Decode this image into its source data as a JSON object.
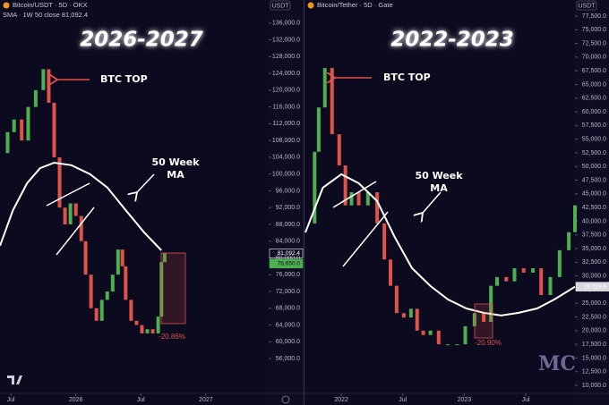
{
  "chart_data": [
    {
      "type": "candles",
      "header": "Bitcoin/USDT · 5D · OKX",
      "indicator": "SMA · 1W 50 close  81,092.4",
      "title": "2026-2027",
      "axis_label": "USDT",
      "top_label": "BTC TOP",
      "ma_label": [
        "50 Week",
        "MA"
      ],
      "drop_label": "-20.86%",
      "up_color": "#4caf50",
      "down_color": "#e0524a",
      "ma_color": "#ffffff",
      "x": [
        5.0,
        5.7,
        6.3,
        7.0,
        7.6,
        8.3,
        9.0,
        9.5,
        10.0,
        10.5,
        11.0,
        11.5,
        12.0,
        12.5,
        12.9,
        13.4,
        13.9,
        14.4,
        14.9,
        15.4,
        15.9,
        16.3,
        16.6,
        17.1,
        17.6,
        18.1,
        18.6,
        19.1,
        19.6,
        19.9,
        20.2
      ],
      "values": [
        105000,
        110000,
        113000,
        108000,
        116000,
        120000,
        125000,
        117000,
        104000,
        92000,
        88000,
        93000,
        90000,
        84000,
        76000,
        68000,
        65000,
        70000,
        72000,
        76000,
        82000,
        78000,
        70000,
        65000,
        64000,
        62000,
        63000,
        62000,
        66000,
        79000,
        81092.4
      ],
      "ma_x": [
        5.0,
        6.2,
        7.5,
        8.7,
        10.0,
        11.6,
        13.3,
        14.9,
        16.6,
        18.3,
        19.9
      ],
      "ma_values": [
        82900,
        91400,
        97800,
        101400,
        102700,
        102100,
        100000,
        96800,
        91400,
        86100,
        81800
      ],
      "price_tags": [
        {
          "value": 81092.4,
          "label": "81,092.4",
          "color": "#ffffff"
        },
        {
          "value": 78650,
          "label": "78,650.0",
          "color": "#4caf50"
        }
      ],
      "xlim": [
        5,
        29.8
      ],
      "xticks": [
        {
          "value": 6,
          "label": "Jul"
        },
        {
          "value": 12,
          "label": "2026"
        },
        {
          "value": 18,
          "label": "Jul"
        },
        {
          "value": 24,
          "label": "2027"
        }
      ],
      "ylim": [
        47700,
        141500
      ],
      "yticks": [
        {
          "value": 136000,
          "label": "136,000.0"
        },
        {
          "value": 132000,
          "label": "132,000.0"
        },
        {
          "value": 128000,
          "label": "128,000.0"
        },
        {
          "value": 124000,
          "label": "124,000.0"
        },
        {
          "value": 120000,
          "label": "120,000.0"
        },
        {
          "value": 116000,
          "label": "116,000.0"
        },
        {
          "value": 112000,
          "label": "112,000.0"
        },
        {
          "value": 108000,
          "label": "108,000.0"
        },
        {
          "value": 104000,
          "label": "104,000.0"
        },
        {
          "value": 100000,
          "label": "100,000.0"
        },
        {
          "value": 96000,
          "label": "96,000.0"
        },
        {
          "value": 92000,
          "label": "92,000.0"
        },
        {
          "value": 88000,
          "label": "88,000.0"
        },
        {
          "value": 84000,
          "label": "84,000.0"
        },
        {
          "value": 80000,
          "label": "80,000.0"
        },
        {
          "value": 76000,
          "label": "76,000.0"
        },
        {
          "value": 72000,
          "label": "72,000.0"
        },
        {
          "value": 68000,
          "label": "68,000.0"
        },
        {
          "value": 64000,
          "label": "64,000.0"
        },
        {
          "value": 60000,
          "label": "60,000.0"
        },
        {
          "value": 56000,
          "label": "56,000.0"
        }
      ]
    },
    {
      "type": "candles",
      "header": "Bitcoin/Tether · 5D · Gate",
      "title": "2022-2023",
      "axis_label": "USDT",
      "top_label": "BTC TOP",
      "ma_label": [
        "50 Week",
        "MA"
      ],
      "drop_label": "-20.90%",
      "up_color": "#4caf50",
      "down_color": "#e0524a",
      "ma_color": "#ffffff",
      "watermark": "MC",
      "x": [
        8.5,
        9.4,
        9.8,
        10.4,
        11.1,
        11.8,
        12.4,
        13.0,
        13.7,
        14.6,
        15.5,
        16.2,
        16.8,
        17.4,
        18.1,
        18.8,
        19.4,
        20.0,
        20.7,
        21.5,
        22.4,
        23.3,
        24.1,
        25.0,
        25.9,
        26.6,
        27.2,
        28.1,
        28.9,
        29.8,
        30.7,
        31.5,
        32.4,
        33.3,
        34.2,
        34.8
      ],
      "values": [
        39600,
        52700,
        60800,
        68000,
        55900,
        50200,
        42900,
        45300,
        42900,
        45300,
        39600,
        33000,
        28200,
        23200,
        22400,
        24000,
        20000,
        19200,
        20000,
        17500,
        17500,
        17500,
        20800,
        23200,
        21600,
        28200,
        29800,
        29000,
        31400,
        30600,
        31400,
        26500,
        29800,
        34700,
        38000,
        42900
      ],
      "ma_x": [
        8.5,
        10.2,
        12.0,
        13.7,
        15.5,
        17.2,
        18.9,
        20.7,
        22.4,
        24.2,
        25.9,
        27.6,
        29.3,
        31.1,
        32.8,
        34.8
      ],
      "ma_values": [
        37950,
        46130,
        48580,
        46950,
        43680,
        37140,
        31420,
        28150,
        25700,
        24060,
        23250,
        22760,
        23250,
        24060,
        25700,
        28029.6
      ],
      "price_tags": [
        {
          "value": 28029.6,
          "label": "28,029.6",
          "color": "#d8d8e0"
        }
      ],
      "xlim": [
        8.5,
        34.8
      ],
      "xticks": [
        {
          "value": 12,
          "label": "2022"
        },
        {
          "value": 18,
          "label": "Jul"
        },
        {
          "value": 24,
          "label": "2023"
        },
        {
          "value": 30,
          "label": "Jul"
        }
      ],
      "ylim": [
        8530,
        80440
      ],
      "yticks": [
        {
          "value": 77500,
          "label": "77,500.0"
        },
        {
          "value": 75000,
          "label": "75,000.0"
        },
        {
          "value": 72500,
          "label": "72,500.0"
        },
        {
          "value": 70000,
          "label": "70,000.0"
        },
        {
          "value": 67500,
          "label": "67,500.0"
        },
        {
          "value": 65000,
          "label": "65,000.0"
        },
        {
          "value": 62500,
          "label": "62,500.0"
        },
        {
          "value": 60000,
          "label": "60,000.0"
        },
        {
          "value": 57500,
          "label": "57,500.0"
        },
        {
          "value": 55000,
          "label": "55,000.0"
        },
        {
          "value": 52500,
          "label": "52,500.0"
        },
        {
          "value": 50000,
          "label": "50,000.0"
        },
        {
          "value": 47500,
          "label": "47,500.0"
        },
        {
          "value": 45000,
          "label": "45,000.0"
        },
        {
          "value": 42500,
          "label": "42,500.0"
        },
        {
          "value": 40000,
          "label": "40,000.0"
        },
        {
          "value": 37500,
          "label": "37,500.0"
        },
        {
          "value": 35000,
          "label": "35,000.0"
        },
        {
          "value": 32500,
          "label": "32,500.0"
        },
        {
          "value": 30000,
          "label": "30,000.0"
        },
        {
          "value": 27500,
          "label": "27,500.0"
        },
        {
          "value": 25000,
          "label": "25,000.0"
        },
        {
          "value": 22500,
          "label": "22,500.0"
        },
        {
          "value": 20000,
          "label": "20,000.0"
        },
        {
          "value": 17500,
          "label": "17,500.0"
        },
        {
          "value": 15000,
          "label": "15,000.0"
        },
        {
          "value": 12500,
          "label": "12,500.0"
        },
        {
          "value": 10000,
          "label": "10,000.0"
        }
      ]
    }
  ]
}
